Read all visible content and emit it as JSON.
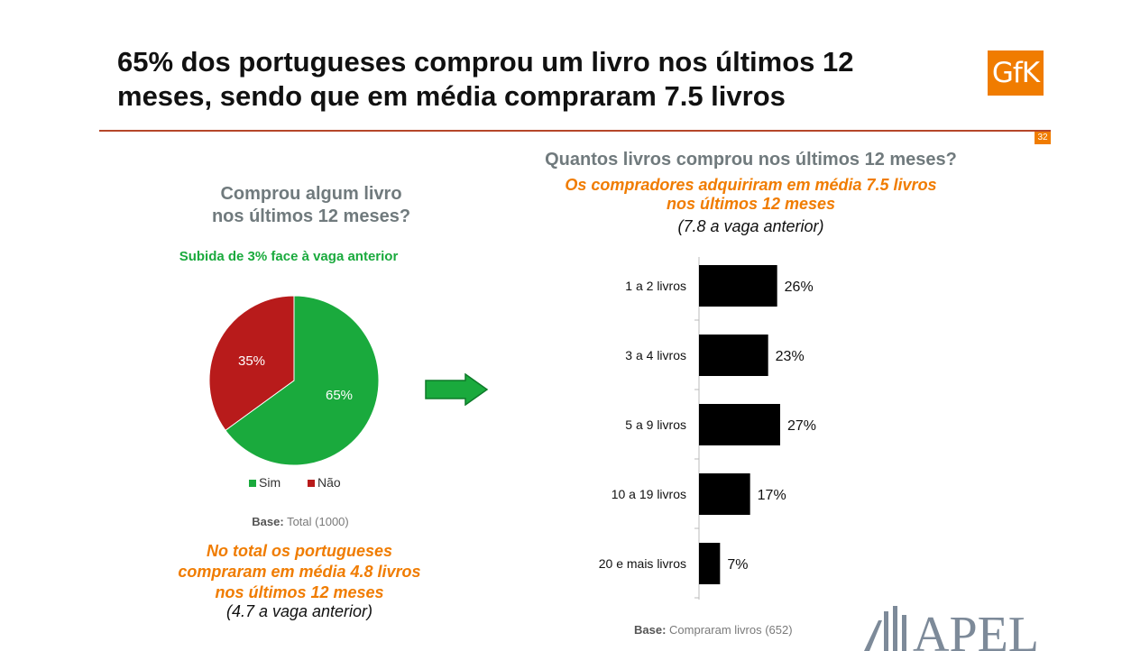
{
  "title": "65% dos portugueses comprou um livro nos últimos 12 meses, sendo que em média compraram 7.5 livros",
  "logo_text": "GfK",
  "page_number": "32",
  "colors": {
    "accent_orange": "#f07c00",
    "green": "#1aaa3d",
    "red": "#b81b1b",
    "heading_grey": "#707a7d",
    "bar": "#000000"
  },
  "left": {
    "heading_line1": "Comprou algum livro",
    "heading_line2": "nos últimos 12 meses?",
    "subheading": "Subida de 3% face à vaga anterior",
    "base_label": "Base:",
    "base_value": "Total (1000)",
    "highlight_line1": "No total os portugueses",
    "highlight_line2": "compraram em média 4.8 livros",
    "highlight_line3": "nos últimos 12 meses",
    "previous": "(4.7 a vaga anterior)"
  },
  "right": {
    "heading": "Quantos livros comprou nos últimos 12 meses?",
    "highlight_line1": "Os compradores adquiriram em média 7.5 livros",
    "highlight_line2": "nos últimos 12 meses",
    "previous": "(7.8 a vaga anterior)",
    "base_label": "Base:",
    "base_value": "Compraram livros (652)"
  },
  "arrow_icon": "green-right-arrow-icon",
  "apel_logo_text": "APEL",
  "chart_data": [
    {
      "type": "pie",
      "labels": [
        "Sim",
        "Não"
      ],
      "values": [
        65,
        35
      ],
      "value_labels": [
        "65%",
        "35%"
      ],
      "colors": [
        "#1aaa3d",
        "#b81b1b"
      ],
      "legend": "bottom"
    },
    {
      "type": "bar",
      "orientation": "horizontal",
      "categories": [
        "1 a 2 livros",
        "3 a 4 livros",
        "5 a 9 livros",
        "10 a 19 livros",
        "20 e mais livros"
      ],
      "values": [
        26,
        23,
        27,
        17,
        7
      ],
      "value_labels": [
        "26%",
        "23%",
        "27%",
        "17%",
        "7%"
      ],
      "unit": "%",
      "color": "#000000"
    }
  ]
}
